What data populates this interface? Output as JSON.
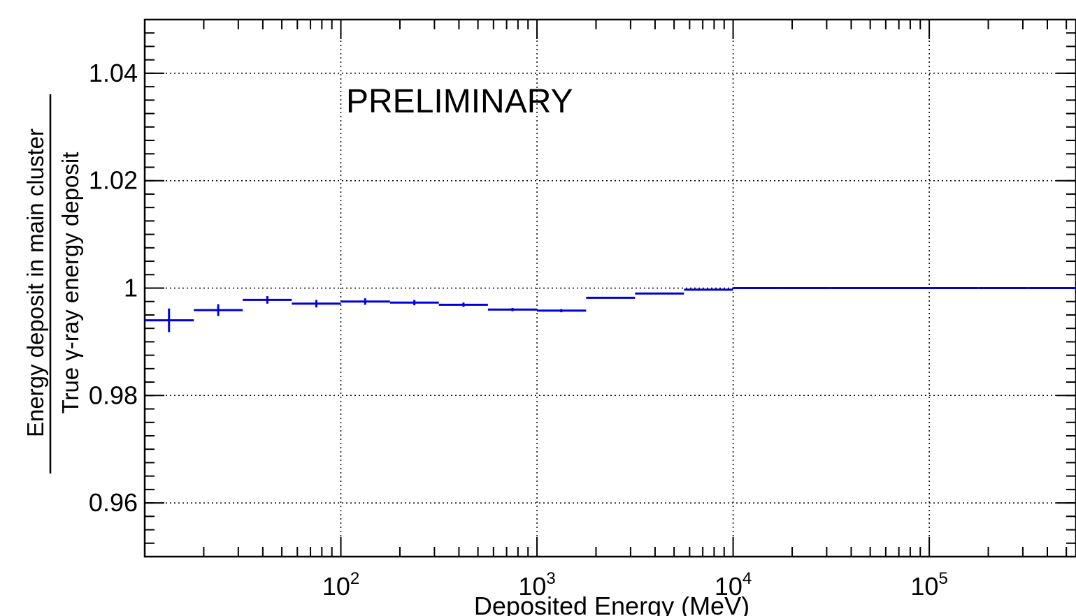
{
  "chart_data": {
    "type": "line",
    "title": "",
    "annotation": "PRELIMINARY",
    "xlabel": "Deposited Energy (MeV)",
    "ylabel_numerator": "Energy deposit in main cluster",
    "ylabel_denominator": "True γ-ray energy deposit",
    "x_scale": "log",
    "xlim": [
      10,
      560000
    ],
    "ylim": [
      0.95,
      1.05
    ],
    "grid": true,
    "x_ticks": [
      {
        "value": 100,
        "base": "10",
        "exp": "2"
      },
      {
        "value": 1000,
        "base": "10",
        "exp": "3"
      },
      {
        "value": 10000,
        "base": "10",
        "exp": "4"
      },
      {
        "value": 100000,
        "base": "10",
        "exp": "5"
      }
    ],
    "y_ticks": [
      {
        "value": 0.96,
        "label": "0.96"
      },
      {
        "value": 0.98,
        "label": "0.98"
      },
      {
        "value": 1.0,
        "label": "1"
      },
      {
        "value": 1.02,
        "label": "1.02"
      },
      {
        "value": 1.04,
        "label": "1.04"
      }
    ],
    "series_color": "#0000dd",
    "series": [
      {
        "points": [
          {
            "xlo": 10.0,
            "xhi": 17.8,
            "x": 13.3,
            "y": 0.994,
            "err": 0.0022
          },
          {
            "xlo": 17.8,
            "xhi": 31.6,
            "x": 23.7,
            "y": 0.9959,
            "err": 0.0011
          },
          {
            "xlo": 31.6,
            "xhi": 56.2,
            "x": 42.2,
            "y": 0.9978,
            "err": 0.0007
          },
          {
            "xlo": 56.2,
            "xhi": 100,
            "x": 75.0,
            "y": 0.9971,
            "err": 0.0007
          },
          {
            "xlo": 100,
            "xhi": 178,
            "x": 133,
            "y": 0.9975,
            "err": 0.0006
          },
          {
            "xlo": 178,
            "xhi": 316,
            "x": 237,
            "y": 0.9973,
            "err": 0.0005
          },
          {
            "xlo": 316,
            "xhi": 562,
            "x": 422,
            "y": 0.9969,
            "err": 0.0004
          },
          {
            "xlo": 562,
            "xhi": 1000,
            "x": 750,
            "y": 0.996,
            "err": 0.0003
          },
          {
            "xlo": 1000,
            "xhi": 1780,
            "x": 1330,
            "y": 0.9958,
            "err": 0.0003
          },
          {
            "xlo": 1780,
            "xhi": 3160,
            "x": 2370,
            "y": 0.9982,
            "err": 0.0001
          },
          {
            "xlo": 3160,
            "xhi": 5620,
            "x": 4220,
            "y": 0.999,
            "err": 0.0001
          },
          {
            "xlo": 5620,
            "xhi": 10000,
            "x": 7500,
            "y": 0.9997,
            "err": 0.0001
          },
          {
            "xlo": 10000,
            "xhi": 17800,
            "x": 13300,
            "y": 1.0,
            "err": 0.0001
          },
          {
            "xlo": 17800,
            "xhi": 31600,
            "x": 23700,
            "y": 1.0,
            "err": 0.0001
          },
          {
            "xlo": 31600,
            "xhi": 56200,
            "x": 42200,
            "y": 1.0,
            "err": 0.0001
          },
          {
            "xlo": 56200,
            "xhi": 100000,
            "x": 75000,
            "y": 1.0,
            "err": 0.0001
          },
          {
            "xlo": 100000,
            "xhi": 178000,
            "x": 133000,
            "y": 1.0,
            "err": 0.0001
          },
          {
            "xlo": 178000,
            "xhi": 316000,
            "x": 237000,
            "y": 1.0,
            "err": 0.0001
          },
          {
            "xlo": 316000,
            "xhi": 560000,
            "x": 422000,
            "y": 1.0,
            "err": 0.0001
          }
        ]
      }
    ]
  }
}
